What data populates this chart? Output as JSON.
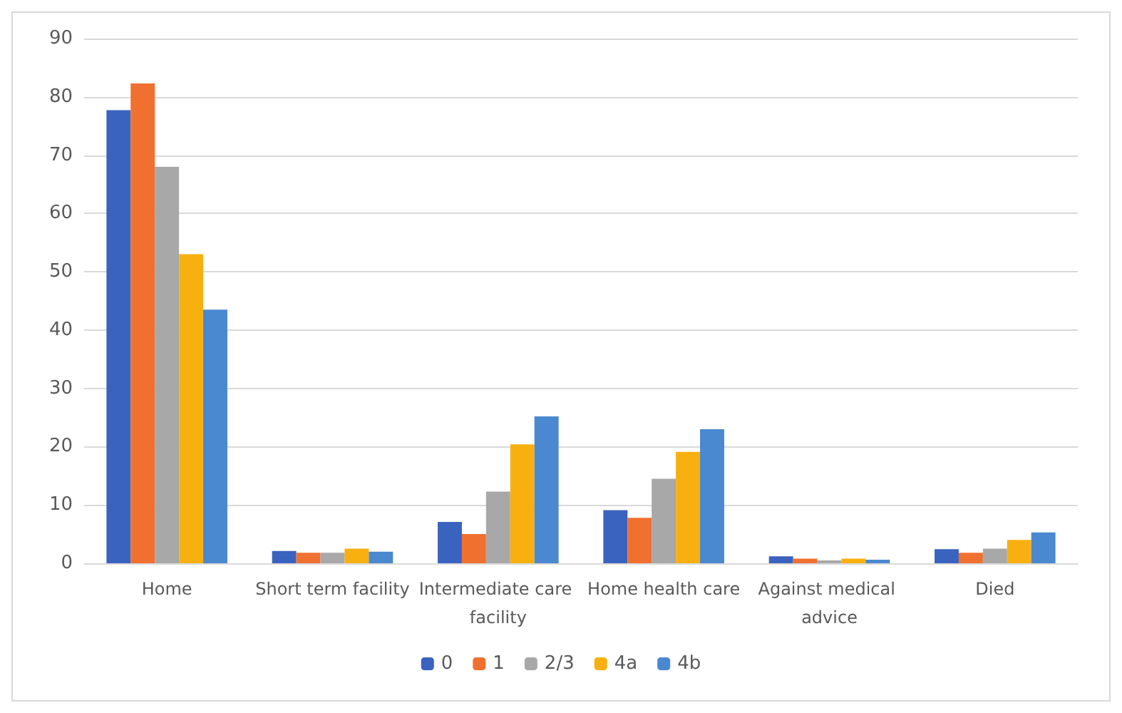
{
  "chart_data": {
    "type": "bar",
    "categories": [
      "Home",
      "Short term facility",
      "Intermediate care facility",
      "Home health care",
      "Against medical advice",
      "Died"
    ],
    "series": [
      {
        "name": "0",
        "color": "#3a62bf",
        "values": [
          77.7,
          2.1,
          7.1,
          9.1,
          1.2,
          2.4
        ]
      },
      {
        "name": "1",
        "color": "#f07030",
        "values": [
          82.3,
          1.8,
          5.0,
          7.8,
          0.8,
          1.8
        ]
      },
      {
        "name": "2/3",
        "color": "#a8a8a8",
        "values": [
          68,
          1.8,
          12.3,
          14.5,
          0.5,
          2.5
        ]
      },
      {
        "name": "4a",
        "color": "#f8b010",
        "values": [
          53,
          2.5,
          20.4,
          19.1,
          0.8,
          4.0
        ]
      },
      {
        "name": "4b",
        "color": "#4a88d0",
        "values": [
          43.5,
          2.0,
          25.2,
          23.0,
          0.6,
          5.3
        ]
      }
    ],
    "ylim": [
      0,
      90
    ],
    "yticks": [
      0,
      10,
      20,
      30,
      40,
      50,
      60,
      70,
      80,
      90
    ],
    "grid": "y",
    "legend": "bottom"
  }
}
